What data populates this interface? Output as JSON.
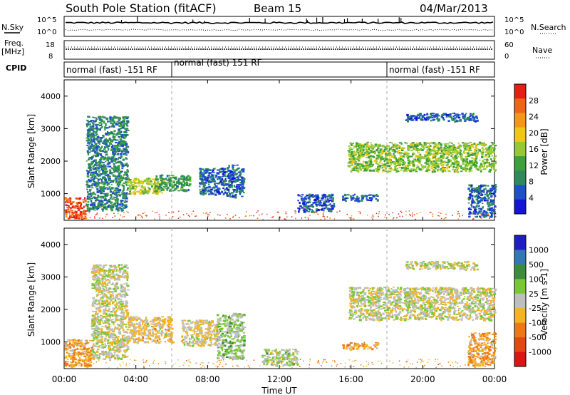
{
  "header": {
    "title": "South Pole Station (fitACF)",
    "beam": "Beam 15",
    "date": "04/Mar/2013"
  },
  "summary": {
    "nsky_label": "N.Sky",
    "nsearch_label": "N.Search",
    "freq_label_1": "Freq.",
    "freq_label_2": "[MHz]",
    "nave_label": "Nave",
    "cpid_label": "CPID",
    "left_top_ticks": [
      "10^5",
      "10^0"
    ],
    "right_top_ticks": [
      "10^5",
      "10^0"
    ],
    "freq_ticks": [
      "18",
      "8"
    ],
    "nave_ticks": [
      "60",
      "0"
    ]
  },
  "cpid_segments": [
    {
      "label": "normal (fast) -151 RF",
      "start_hour": 0,
      "end_hour": 6
    },
    {
      "label": "normal (fast) 151 RF",
      "start_hour": 6,
      "end_hour": 18
    },
    {
      "label": "normal (fast) -151 RF",
      "start_hour": 18,
      "end_hour": 24
    }
  ],
  "colors": {
    "power": [
      "#1414dc",
      "#1e50c8",
      "#2e8a5a",
      "#3ca03c",
      "#96c832",
      "#f0c814",
      "#f59614",
      "#f06414",
      "#e61e14"
    ],
    "velocity": [
      "#1e1ec8",
      "#3278b4",
      "#3c8c3c",
      "#78c832",
      "#bebebe",
      "#f5b41e",
      "#f07814",
      "#e64614",
      "#dc1414"
    ]
  },
  "chart_data": [
    {
      "type": "heatmap",
      "title": "Power",
      "xlabel": "",
      "ylabel": "Slant Range [km]",
      "xlim": [
        0,
        24
      ],
      "ylim": [
        180,
        4500
      ],
      "yticks": [
        1000,
        2000,
        3000,
        4000
      ],
      "colorbar": {
        "label": "Power [dB]",
        "ticks": [
          "4",
          "8",
          "12",
          "16",
          "20",
          "24",
          "28"
        ],
        "range": [
          0,
          30
        ]
      },
      "regions": [
        {
          "x": [
            0.0,
            1.2
          ],
          "y": [
            250,
            900
          ],
          "value": 26
        },
        {
          "x": [
            1.2,
            3.5
          ],
          "y": [
            500,
            3400
          ],
          "value": 8
        },
        {
          "x": [
            3.5,
            5.5
          ],
          "y": [
            1000,
            1500
          ],
          "value": 16
        },
        {
          "x": [
            5.0,
            7.0
          ],
          "y": [
            1100,
            1600
          ],
          "value": 10
        },
        {
          "x": [
            7.5,
            9.0
          ],
          "y": [
            1000,
            1800
          ],
          "value": 6
        },
        {
          "x": [
            9.0,
            10.0
          ],
          "y": [
            900,
            1900
          ],
          "value": 6
        },
        {
          "x": [
            13.0,
            15.0
          ],
          "y": [
            450,
            1000
          ],
          "value": 5
        },
        {
          "x": [
            15.5,
            17.5
          ],
          "y": [
            800,
            1000
          ],
          "value": 6
        },
        {
          "x": [
            15.8,
            24.0
          ],
          "y": [
            1700,
            2600
          ],
          "value": 14
        },
        {
          "x": [
            19.0,
            23.0
          ],
          "y": [
            3250,
            3500
          ],
          "value": 6
        },
        {
          "x": [
            22.5,
            24.0
          ],
          "y": [
            300,
            1300
          ],
          "value": 6
        }
      ]
    },
    {
      "type": "heatmap",
      "title": "Velocity",
      "xlabel": "Time UT",
      "ylabel": "Slant Range [km]",
      "xlim": [
        0,
        24
      ],
      "ylim": [
        180,
        4500
      ],
      "yticks": [
        1000,
        2000,
        3000,
        4000
      ],
      "xticks": [
        "00:00",
        "04:00",
        "08:00",
        "12:00",
        "16:00",
        "20:00",
        "00:00"
      ],
      "colorbar": {
        "label": "Velocity [m s-1]",
        "ticks": [
          "1000",
          "500",
          "100",
          "25",
          "-25",
          "-100",
          "-500",
          "-1000"
        ],
        "range": [
          -1000,
          1000
        ]
      },
      "regions": [
        {
          "x": [
            0.0,
            1.5
          ],
          "y": [
            250,
            1100
          ],
          "value": -300
        },
        {
          "x": [
            1.5,
            3.5
          ],
          "y": [
            500,
            3400
          ],
          "value": 0
        },
        {
          "x": [
            3.5,
            6.0
          ],
          "y": [
            1000,
            1800
          ],
          "value": -120
        },
        {
          "x": [
            6.5,
            8.5
          ],
          "y": [
            900,
            1700
          ],
          "value": -80
        },
        {
          "x": [
            8.5,
            10.0
          ],
          "y": [
            500,
            1900
          ],
          "value": 150
        },
        {
          "x": [
            11.0,
            13.0
          ],
          "y": [
            300,
            800
          ],
          "value": 100
        },
        {
          "x": [
            15.5,
            17.5
          ],
          "y": [
            800,
            1000
          ],
          "value": -300
        },
        {
          "x": [
            15.8,
            24.0
          ],
          "y": [
            1700,
            2700
          ],
          "value": 0
        },
        {
          "x": [
            19.0,
            23.0
          ],
          "y": [
            3250,
            3500
          ],
          "value": 0
        },
        {
          "x": [
            22.5,
            24.0
          ],
          "y": [
            300,
            1300
          ],
          "value": -300
        }
      ]
    }
  ]
}
